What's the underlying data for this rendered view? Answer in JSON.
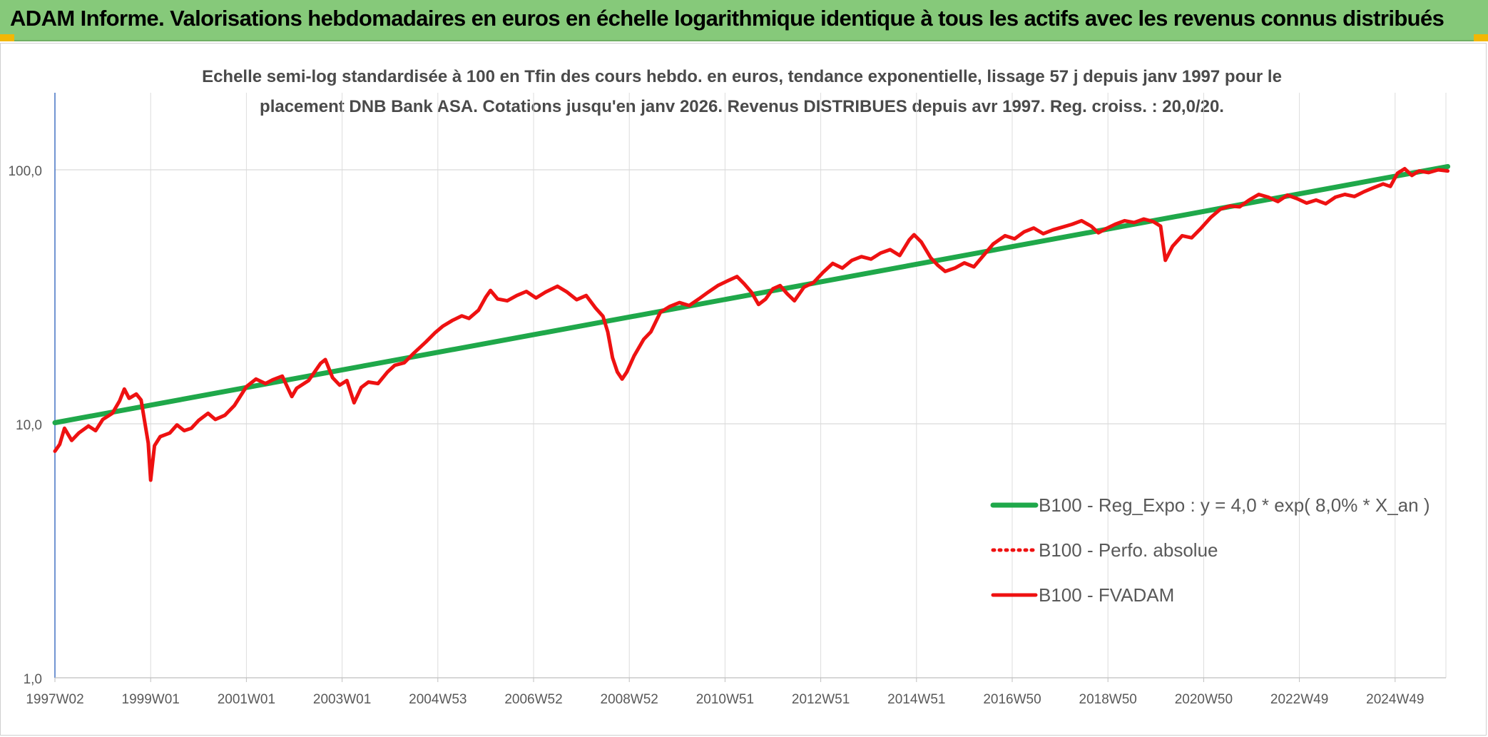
{
  "header": {
    "title": "ADAM Informe. Valorisations hebdomadaires en euros en échelle logarithmique identique à tous les actifs avec les revenus connus distribués"
  },
  "colors": {
    "header_bg": "#86c97a",
    "regression": "#1fa84a",
    "series": "#ee1111",
    "corner": "#f2b705"
  },
  "chart_data": {
    "type": "line",
    "title": "",
    "subtitle_lines": [
      "Echelle semi-log standardisée à 100 en Tfin des cours hebdo. en euros, tendance exponentielle, lissage 57 j depuis janv 1997 pour le",
      "placement DNB Bank ASA. Cotations jusqu'en janv 2026. Revenus DISTRIBUES depuis avr 1997. Reg. croiss. : 20,0/20."
    ],
    "xlabel": "",
    "ylabel": "",
    "y_scale": "log",
    "ylim": [
      1,
      200
    ],
    "xlim": [
      1997.0,
      2026.1
    ],
    "grid": true,
    "y_ticks": [
      {
        "value": 1,
        "label": "1,0"
      },
      {
        "value": 10,
        "label": "10,0"
      },
      {
        "value": 100,
        "label": "100,0"
      }
    ],
    "x_ticks": [
      {
        "value": 1997.0,
        "label": "1997W02"
      },
      {
        "value": 1999.0,
        "label": "1999W01"
      },
      {
        "value": 2001.0,
        "label": "2001W01"
      },
      {
        "value": 2003.0,
        "label": "2003W01"
      },
      {
        "value": 2005.0,
        "label": "2004W53"
      },
      {
        "value": 2007.0,
        "label": "2006W52"
      },
      {
        "value": 2009.0,
        "label": "2008W52"
      },
      {
        "value": 2011.0,
        "label": "2010W51"
      },
      {
        "value": 2013.0,
        "label": "2012W51"
      },
      {
        "value": 2015.0,
        "label": "2014W51"
      },
      {
        "value": 2017.0,
        "label": "2016W50"
      },
      {
        "value": 2019.0,
        "label": "2018W50"
      },
      {
        "value": 2021.0,
        "label": "2020W50"
      },
      {
        "value": 2023.0,
        "label": "2022W49"
      },
      {
        "value": 2025.0,
        "label": "2024W49"
      }
    ],
    "legend_position": "right",
    "series": [
      {
        "name": "B100 - Reg_Expo : y = 4,0 * exp( 8,0% *  X_an )",
        "style": "solid-thick",
        "color": "#1fa84a",
        "points": [
          [
            1997.0,
            10.1
          ],
          [
            2026.1,
            103.0
          ]
        ]
      },
      {
        "name": "B100 - Perfo. absolue",
        "style": "dotted",
        "color": "#ee1111",
        "points": []
      },
      {
        "name": "B100 - FVADAM",
        "style": "solid",
        "color": "#ee1111",
        "points": [
          [
            1997.0,
            7.8
          ],
          [
            1997.1,
            8.3
          ],
          [
            1997.2,
            9.6
          ],
          [
            1997.35,
            8.6
          ],
          [
            1997.5,
            9.2
          ],
          [
            1997.7,
            9.8
          ],
          [
            1997.85,
            9.4
          ],
          [
            1998.0,
            10.4
          ],
          [
            1998.2,
            11.0
          ],
          [
            1998.35,
            12.3
          ],
          [
            1998.45,
            13.7
          ],
          [
            1998.55,
            12.6
          ],
          [
            1998.7,
            13.1
          ],
          [
            1998.8,
            12.4
          ],
          [
            1998.95,
            8.4
          ],
          [
            1999.0,
            6.0
          ],
          [
            1999.08,
            8.2
          ],
          [
            1999.2,
            8.9
          ],
          [
            1999.4,
            9.2
          ],
          [
            1999.55,
            9.9
          ],
          [
            1999.7,
            9.4
          ],
          [
            1999.85,
            9.6
          ],
          [
            2000.0,
            10.3
          ],
          [
            2000.2,
            11.0
          ],
          [
            2000.35,
            10.4
          ],
          [
            2000.55,
            10.8
          ],
          [
            2000.75,
            11.8
          ],
          [
            2001.0,
            14.0
          ],
          [
            2001.2,
            15.0
          ],
          [
            2001.4,
            14.4
          ],
          [
            2001.55,
            14.9
          ],
          [
            2001.75,
            15.4
          ],
          [
            2001.95,
            12.8
          ],
          [
            2002.05,
            13.8
          ],
          [
            2002.3,
            14.8
          ],
          [
            2002.55,
            17.3
          ],
          [
            2002.65,
            17.9
          ],
          [
            2002.8,
            15.2
          ],
          [
            2002.95,
            14.2
          ],
          [
            2003.1,
            14.8
          ],
          [
            2003.25,
            12.1
          ],
          [
            2003.4,
            13.9
          ],
          [
            2003.55,
            14.6
          ],
          [
            2003.75,
            14.4
          ],
          [
            2003.95,
            16.0
          ],
          [
            2004.1,
            17.0
          ],
          [
            2004.3,
            17.4
          ],
          [
            2004.5,
            19.0
          ],
          [
            2004.75,
            21.0
          ],
          [
            2004.95,
            22.9
          ],
          [
            2005.1,
            24.2
          ],
          [
            2005.3,
            25.5
          ],
          [
            2005.5,
            26.6
          ],
          [
            2005.65,
            26.0
          ],
          [
            2005.85,
            28.0
          ],
          [
            2006.0,
            31.5
          ],
          [
            2006.1,
            33.5
          ],
          [
            2006.25,
            31.0
          ],
          [
            2006.45,
            30.5
          ],
          [
            2006.65,
            32.0
          ],
          [
            2006.85,
            33.2
          ],
          [
            2007.05,
            31.3
          ],
          [
            2007.25,
            33.0
          ],
          [
            2007.5,
            34.8
          ],
          [
            2007.7,
            33.0
          ],
          [
            2007.9,
            30.8
          ],
          [
            2008.1,
            32.0
          ],
          [
            2008.3,
            28.5
          ],
          [
            2008.45,
            26.5
          ],
          [
            2008.55,
            23.0
          ],
          [
            2008.65,
            18.2
          ],
          [
            2008.75,
            16.0
          ],
          [
            2008.85,
            15.0
          ],
          [
            2008.95,
            16.0
          ],
          [
            2009.1,
            18.5
          ],
          [
            2009.3,
            21.5
          ],
          [
            2009.45,
            23.0
          ],
          [
            2009.65,
            27.5
          ],
          [
            2009.85,
            29.0
          ],
          [
            2010.05,
            30.0
          ],
          [
            2010.25,
            29.2
          ],
          [
            2010.45,
            31.0
          ],
          [
            2010.65,
            33.0
          ],
          [
            2010.85,
            35.0
          ],
          [
            2011.05,
            36.5
          ],
          [
            2011.25,
            38.0
          ],
          [
            2011.4,
            35.6
          ],
          [
            2011.55,
            33.0
          ],
          [
            2011.7,
            29.5
          ],
          [
            2011.85,
            31.0
          ],
          [
            2012.0,
            34.0
          ],
          [
            2012.15,
            35.0
          ],
          [
            2012.3,
            32.5
          ],
          [
            2012.45,
            30.5
          ],
          [
            2012.65,
            34.5
          ],
          [
            2012.85,
            36.0
          ],
          [
            2013.05,
            39.5
          ],
          [
            2013.25,
            42.8
          ],
          [
            2013.45,
            41.0
          ],
          [
            2013.65,
            44.0
          ],
          [
            2013.85,
            45.5
          ],
          [
            2014.05,
            44.5
          ],
          [
            2014.25,
            47.0
          ],
          [
            2014.45,
            48.5
          ],
          [
            2014.65,
            46.0
          ],
          [
            2014.85,
            53.0
          ],
          [
            2014.95,
            55.5
          ],
          [
            2015.1,
            52.0
          ],
          [
            2015.3,
            45.0
          ],
          [
            2015.45,
            42.0
          ],
          [
            2015.6,
            39.8
          ],
          [
            2015.8,
            41.0
          ],
          [
            2016.0,
            43.0
          ],
          [
            2016.2,
            41.5
          ],
          [
            2016.4,
            46.0
          ],
          [
            2016.6,
            51.0
          ],
          [
            2016.85,
            55.0
          ],
          [
            2017.05,
            53.5
          ],
          [
            2017.25,
            57.0
          ],
          [
            2017.45,
            59.0
          ],
          [
            2017.65,
            56.0
          ],
          [
            2017.85,
            58.0
          ],
          [
            2018.05,
            59.5
          ],
          [
            2018.25,
            61.0
          ],
          [
            2018.45,
            63.0
          ],
          [
            2018.65,
            60.0
          ],
          [
            2018.8,
            56.5
          ],
          [
            2018.95,
            58.5
          ],
          [
            2019.15,
            61.0
          ],
          [
            2019.35,
            63.0
          ],
          [
            2019.55,
            62.0
          ],
          [
            2019.75,
            64.0
          ],
          [
            2019.95,
            62.5
          ],
          [
            2020.1,
            60.0
          ],
          [
            2020.2,
            44.0
          ],
          [
            2020.35,
            50.0
          ],
          [
            2020.55,
            55.0
          ],
          [
            2020.75,
            54.0
          ],
          [
            2020.95,
            59.0
          ],
          [
            2021.15,
            65.0
          ],
          [
            2021.35,
            70.0
          ],
          [
            2021.55,
            72.0
          ],
          [
            2021.75,
            71.5
          ],
          [
            2021.95,
            76.0
          ],
          [
            2022.15,
            80.0
          ],
          [
            2022.35,
            78.0
          ],
          [
            2022.55,
            75.0
          ],
          [
            2022.75,
            79.5
          ],
          [
            2022.95,
            77.0
          ],
          [
            2023.15,
            74.0
          ],
          [
            2023.35,
            76.0
          ],
          [
            2023.55,
            73.5
          ],
          [
            2023.75,
            78.0
          ],
          [
            2023.95,
            80.0
          ],
          [
            2024.15,
            78.5
          ],
          [
            2024.35,
            82.0
          ],
          [
            2024.55,
            85.0
          ],
          [
            2024.75,
            88.0
          ],
          [
            2024.9,
            86.0
          ],
          [
            2025.05,
            97.0
          ],
          [
            2025.2,
            101.0
          ],
          [
            2025.35,
            95.0
          ],
          [
            2025.5,
            99.0
          ],
          [
            2025.7,
            97.5
          ],
          [
            2025.9,
            100.0
          ],
          [
            2026.1,
            99.0
          ]
        ]
      }
    ]
  }
}
